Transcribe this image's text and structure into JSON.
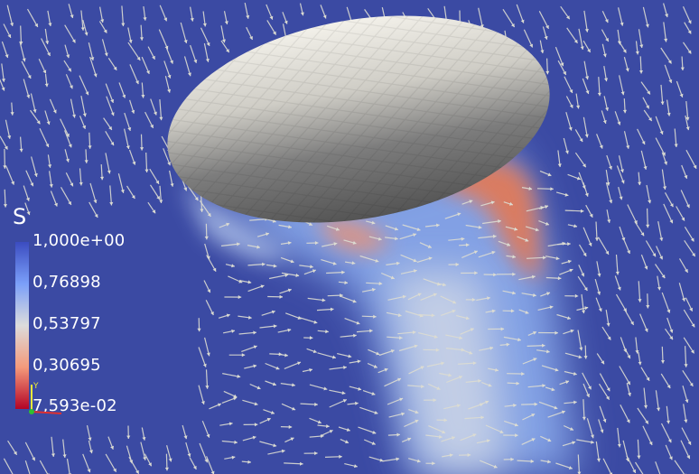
{
  "legend": {
    "title": "S",
    "ticks": [
      "1,000e+00",
      "0,76898",
      "0,53797",
      "0,30695",
      "7,593e-02"
    ],
    "colormap": [
      "#3b4cc0",
      "#7b9ff9",
      "#dcdcdc",
      "#f49a7b",
      "#b40426"
    ]
  },
  "colors": {
    "background": "#3b4aa3",
    "body_light": "#f3f1ea",
    "body_dark": "#5a5a5a",
    "arrow": "#dcdcd2",
    "low_value": "#d0533a"
  },
  "axes": {
    "y_label": "Y"
  }
}
